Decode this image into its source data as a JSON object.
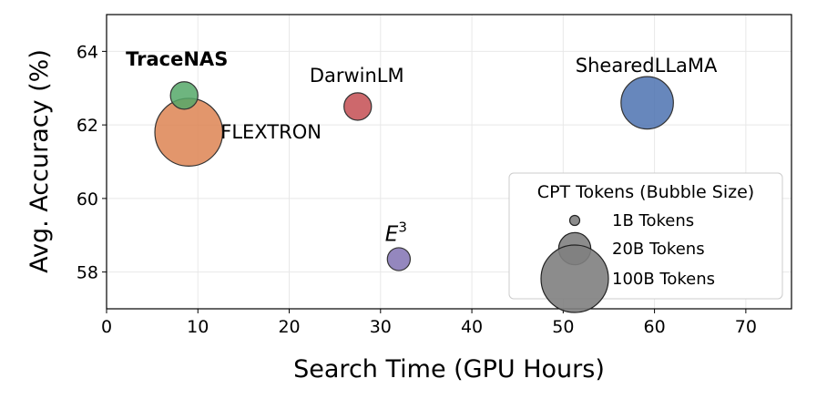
{
  "chart_data": {
    "type": "scatter",
    "xlabel": "Search Time (GPU Hours)",
    "ylabel": "Avg. Accuracy (%)",
    "xlim": [
      0,
      75
    ],
    "ylim": [
      57,
      65
    ],
    "xticks": [
      "0",
      "10",
      "20",
      "30",
      "40",
      "50",
      "60",
      "70"
    ],
    "yticks": [
      "58",
      "60",
      "62",
      "64"
    ],
    "grid": true,
    "points": [
      {
        "name": "TraceNAS",
        "x": 8.5,
        "y": 62.8,
        "cpt_tokens_b": 10,
        "color": "#55a868",
        "highlight": true
      },
      {
        "name": "FLEXTRON",
        "x": 9.0,
        "y": 61.8,
        "cpt_tokens_b": 90,
        "color": "#dd8452",
        "highlight": false
      },
      {
        "name": "DarwinLM",
        "x": 27.5,
        "y": 62.5,
        "cpt_tokens_b": 10,
        "color": "#c44e52",
        "highlight": false
      },
      {
        "name": "ShearedLLaMA",
        "x": 59.2,
        "y": 62.6,
        "cpt_tokens_b": 50,
        "color": "#4c72b0",
        "highlight": false
      },
      {
        "name": "E3",
        "label_base": "E",
        "label_sup": "3",
        "x": 32.0,
        "y": 58.35,
        "cpt_tokens_b": 6,
        "color": "#8172b3",
        "highlight": false
      }
    ],
    "legend": {
      "title": "CPT Tokens (Bubble Size)",
      "placement": "lower-right",
      "entries": [
        {
          "label": "1B Tokens",
          "tokens_b": 1
        },
        {
          "label": "20B Tokens",
          "tokens_b": 20
        },
        {
          "label": "100B Tokens",
          "tokens_b": 100
        }
      ],
      "marker_color": "#808080"
    }
  }
}
